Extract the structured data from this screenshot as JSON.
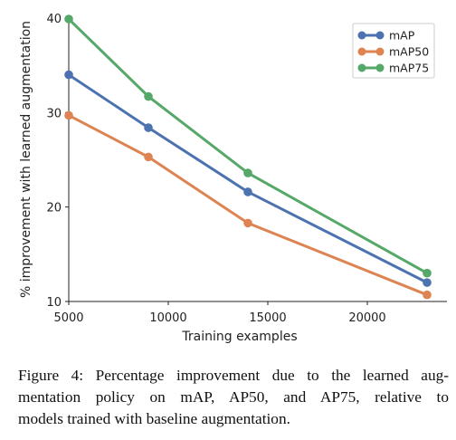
{
  "chart_data": {
    "type": "line",
    "xlabel": "Training examples",
    "ylabel": "% improvement with learned augmentation",
    "x": [
      5000,
      9000,
      14000,
      23000
    ],
    "xlim": [
      5000,
      24000
    ],
    "ylim": [
      10,
      40
    ],
    "xticks": [
      "5000",
      "10000",
      "15000",
      "20000"
    ],
    "yticks": [
      "10",
      "20",
      "30",
      "40"
    ],
    "grid": false,
    "legend_position": "top-right",
    "series": [
      {
        "name": "mAP",
        "color": "#4c72b0",
        "values": [
          34.0,
          28.4,
          21.6,
          12.0
        ]
      },
      {
        "name": "mAP50",
        "color": "#dd8452",
        "values": [
          29.7,
          25.3,
          18.3,
          10.7
        ]
      },
      {
        "name": "mAP75",
        "color": "#55a868",
        "values": [
          39.9,
          31.7,
          23.6,
          13.0
        ]
      }
    ]
  },
  "caption": {
    "line1": "Figure 4: Percentage improvement due to the learned aug-",
    "line2": "mentation policy on mAP, AP50, and AP75, relative to",
    "line3": "models trained with baseline augmentation."
  }
}
